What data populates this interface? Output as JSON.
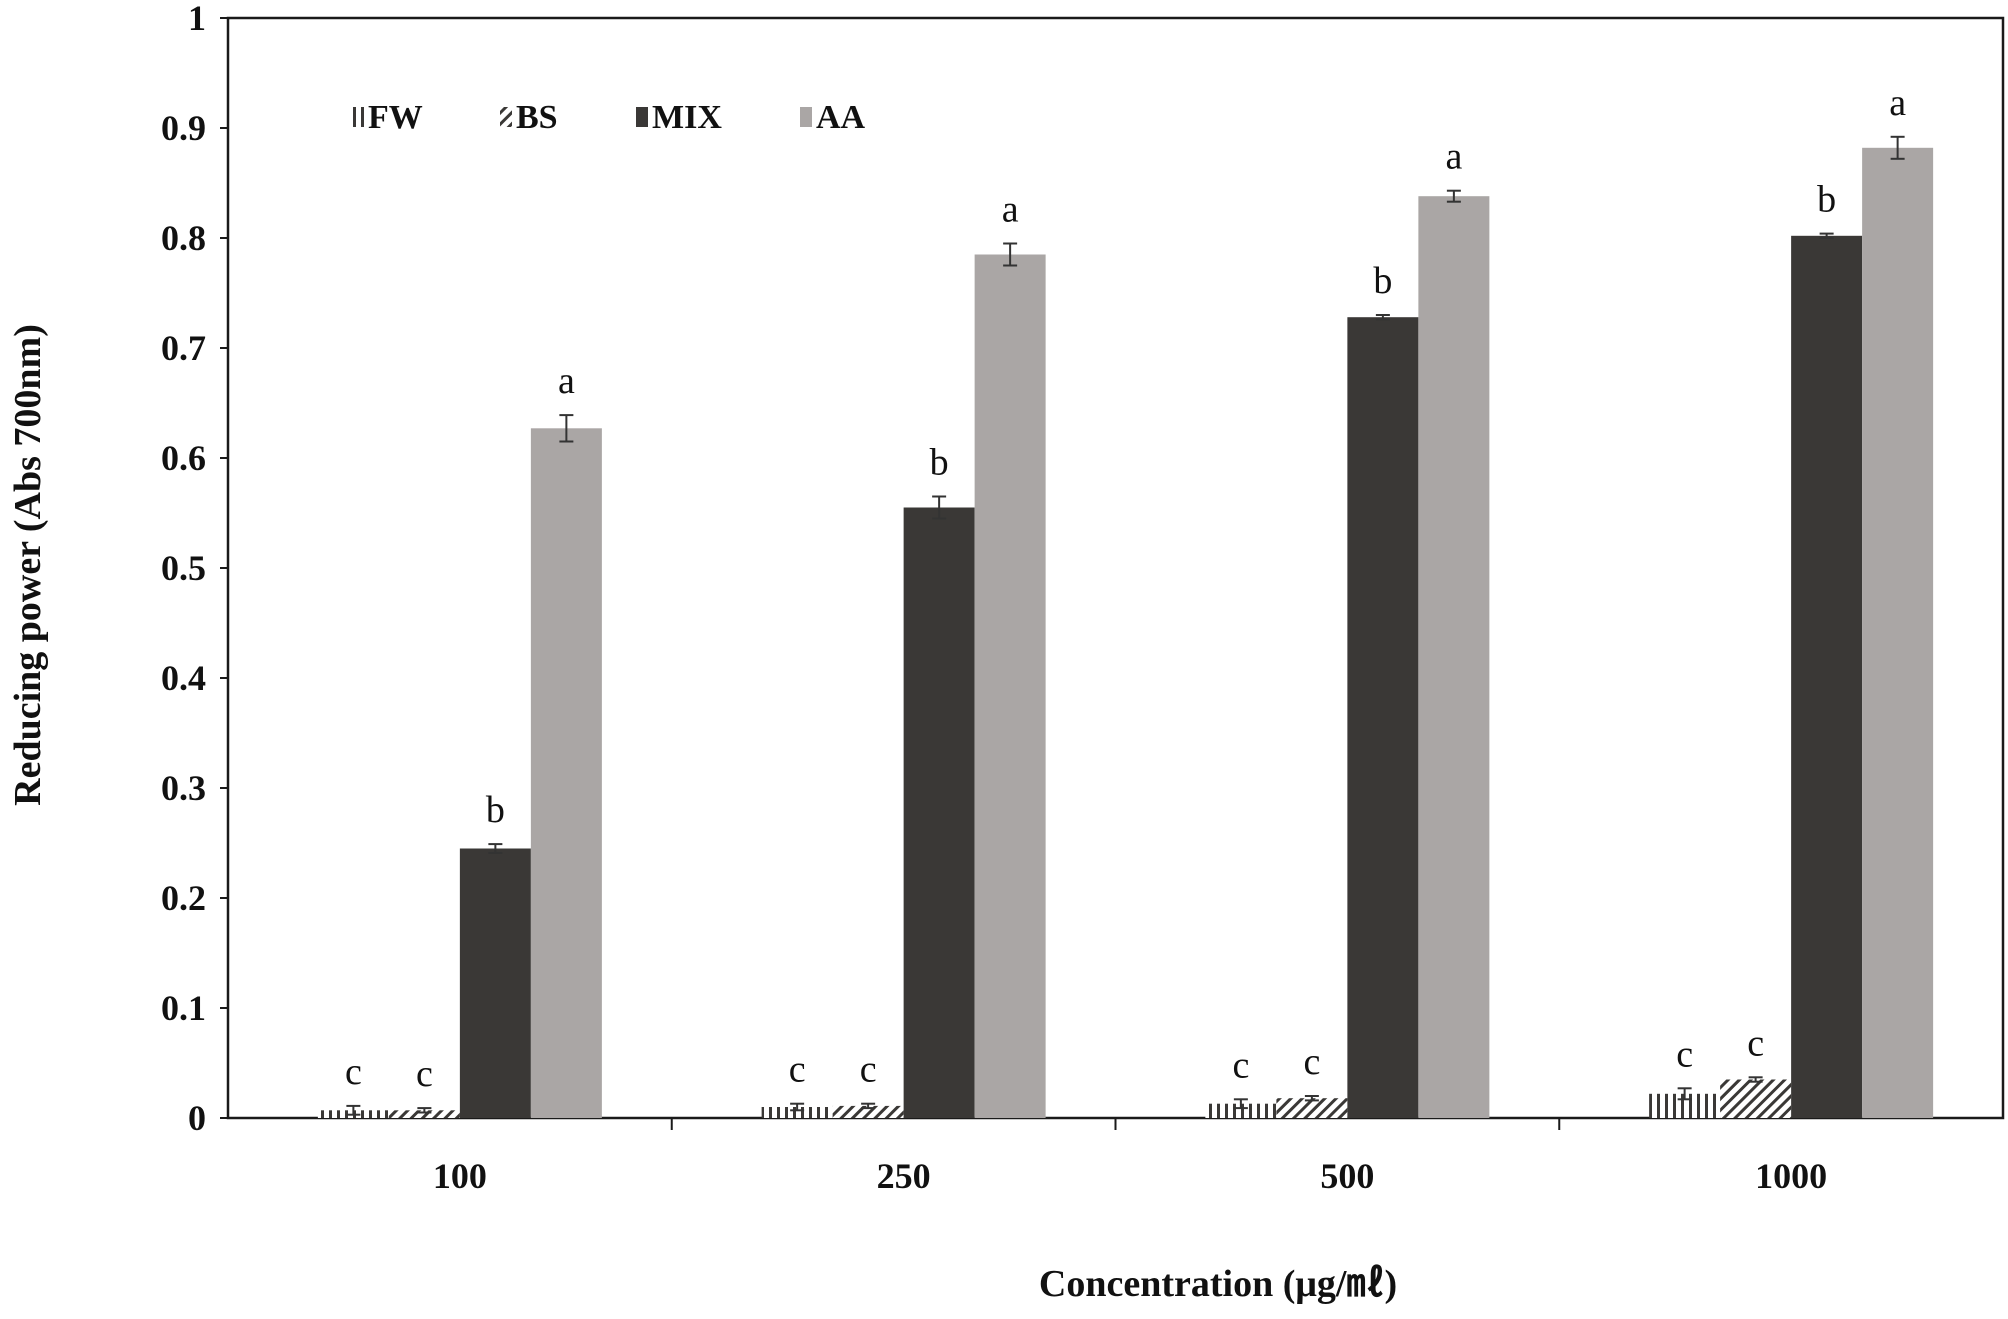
{
  "chart_data": {
    "type": "bar",
    "title": "",
    "xlabel": "Concentration (μg/㎖)",
    "ylabel": "Reducing power (Abs 700nm)",
    "ylim": [
      0,
      1
    ],
    "yticks": [
      "0",
      "0.1",
      "0.2",
      "0.3",
      "0.4",
      "0.5",
      "0.6",
      "0.7",
      "0.8",
      "0.9",
      "1"
    ],
    "categories": [
      "100",
      "250",
      "500",
      "1000"
    ],
    "legend_position": "top-left",
    "grid": false,
    "series": [
      {
        "name": "FW",
        "color": "#3a3836",
        "pattern": "vertical-lines",
        "values": [
          0.007,
          0.01,
          0.013,
          0.022
        ],
        "errors": [
          0.004,
          0.003,
          0.004,
          0.005
        ],
        "labels": [
          "c",
          "c",
          "c",
          "c"
        ]
      },
      {
        "name": "BS",
        "color": "#3a3836",
        "pattern": "diagonal-lines",
        "values": [
          0.007,
          0.011,
          0.018,
          0.035
        ],
        "errors": [
          0.002,
          0.002,
          0.002,
          0.002
        ],
        "labels": [
          "c",
          "c",
          "c",
          "c"
        ]
      },
      {
        "name": "MIX",
        "color": "#3a3836",
        "pattern": "solid",
        "values": [
          0.245,
          0.555,
          0.728,
          0.802
        ],
        "errors": [
          0.004,
          0.01,
          0.002,
          0.002
        ],
        "labels": [
          "b",
          "b",
          "b",
          "b"
        ]
      },
      {
        "name": "AA",
        "color": "#aaa6a5",
        "pattern": "solid",
        "values": [
          0.627,
          0.785,
          0.838,
          0.882
        ],
        "errors": [
          0.012,
          0.01,
          0.005,
          0.01
        ],
        "labels": [
          "a",
          "a",
          "a",
          "a"
        ]
      }
    ]
  }
}
